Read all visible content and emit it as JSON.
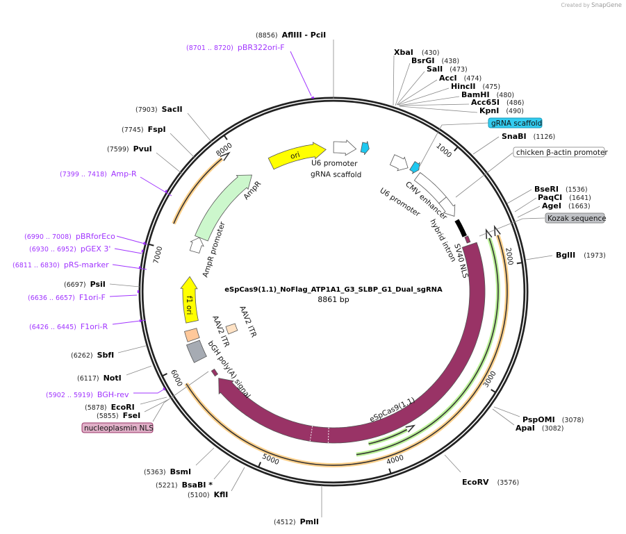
{
  "credit": {
    "prefix": "Created by",
    "brand": "SnapGene"
  },
  "plasmid": {
    "name": "eSpCas9(1.1)_NoFlag_ATP1A1_G3_SLBP_G1_Dual_sgRNA",
    "length_label": "8861 bp",
    "length": 8861
  },
  "ticks": [
    "1000",
    "2000",
    "3000",
    "4000",
    "5000",
    "6000",
    "7000",
    "8000"
  ],
  "features": [
    {
      "label": "ori",
      "start": 8221,
      "end": 8787,
      "color": "#ffff00",
      "direction": "forward"
    },
    {
      "label": "U6 promoter",
      "start": 1,
      "end": 222,
      "color": "#ffffff",
      "direction": "forward"
    },
    {
      "label": "gRNA scaffold",
      "start": 271,
      "end": 345,
      "color": "#1ec8f0",
      "direction": "forward"
    },
    {
      "label": "U6 promoter",
      "start": 591,
      "end": 763,
      "color": "#ffffff",
      "direction": "forward"
    },
    {
      "label": "gRNA scaffold",
      "start": 788,
      "end": 862,
      "color": "#1ec8f0",
      "direction": "forward"
    },
    {
      "label": "CMV enhancer",
      "start": 886,
      "end": 1231,
      "color": "#ffffff",
      "direction": "none"
    },
    {
      "label": "chicken β-actin promoter",
      "start": 1231,
      "end": 1428,
      "color": "#ffffff",
      "direction": "forward"
    },
    {
      "label": "hybrid intron",
      "start": 1477,
      "end": 1649,
      "color": "#000000",
      "direction": "none"
    },
    {
      "label": "SV40 NLS",
      "start": 1661,
      "end": 1723,
      "color": "#993366",
      "direction": "none"
    },
    {
      "label": "eSpCas9(1.1)",
      "start": 1748,
      "end": 5735,
      "color": "#993366",
      "direction": "forward"
    },
    {
      "label": "nucleoplasmin NLS",
      "start": 5772,
      "end": 5833,
      "color": "#993366",
      "direction": "none"
    },
    {
      "label": "bGH poly(A) signal",
      "start": 5981,
      "end": 6154,
      "color": "#a6abb3",
      "direction": "none"
    },
    {
      "label": "AAV2 ITR",
      "start": 6178,
      "end": 6277,
      "color": "#ffc89a",
      "direction": "none"
    },
    {
      "label": "AAV2 ITR",
      "start": 6104,
      "end": 6203,
      "color": "#ffe2c4",
      "direction": "none"
    },
    {
      "label": "f1 ori",
      "start": 6350,
      "end": 6793,
      "color": "#ffff00",
      "direction": "forward"
    },
    {
      "label": "AmpR promoter",
      "start": 7040,
      "end": 7187,
      "color": "#ffffff",
      "direction": "forward"
    },
    {
      "label": "AmpR",
      "start": 7187,
      "end": 8000,
      "color": "#ccf7cc",
      "direction": "forward"
    }
  ],
  "arcs": [
    {
      "start": 7213,
      "end": 7951,
      "color": "#ffcc80",
      "direction": "forward"
    },
    {
      "start": 1674,
      "end": 5858,
      "color": "#ffcc80",
      "direction": "reverse"
    },
    {
      "start": 1674,
      "end": 4234,
      "color": "#b3f08c",
      "direction": "reverse"
    },
    {
      "start": 3667,
      "end": 4111,
      "color": "#b3f08c",
      "direction": "reverse"
    }
  ],
  "enzymes": [
    {
      "name": "AflIII  - PciI",
      "pos": "(8856)"
    },
    {
      "name": "SacII",
      "pos": "(7903)"
    },
    {
      "name": "FspI",
      "pos": "(7745)"
    },
    {
      "name": "PvuI",
      "pos": "(7599)"
    },
    {
      "name": "PsiI",
      "pos": "(6697)"
    },
    {
      "name": "SbfI",
      "pos": "(6262)"
    },
    {
      "name": "NotI",
      "pos": "(6117)"
    },
    {
      "name": "EcoRI",
      "pos": "(5878)"
    },
    {
      "name": "FseI",
      "pos": "(5855)"
    },
    {
      "name": "BsmI",
      "pos": "(5363)"
    },
    {
      "name": "BsaBI *",
      "pos": "(5221)"
    },
    {
      "name": "KflI",
      "pos": "(5100)"
    },
    {
      "name": "PmlI",
      "pos": "(4512)"
    },
    {
      "name": "XbaI",
      "pos": "(430)"
    },
    {
      "name": "BsrGI",
      "pos": "(438)"
    },
    {
      "name": "SalI",
      "pos": "(473)"
    },
    {
      "name": "AccI",
      "pos": "(474)"
    },
    {
      "name": "HincII",
      "pos": "(475)"
    },
    {
      "name": "BamHI",
      "pos": "(480)"
    },
    {
      "name": "Acc65I",
      "pos": "(486)"
    },
    {
      "name": "KpnI",
      "pos": "(490)"
    },
    {
      "name": "SnaBI",
      "pos": "(1126)"
    },
    {
      "name": "BseRI",
      "pos": "(1536)"
    },
    {
      "name": "PaqCI",
      "pos": "(1641)"
    },
    {
      "name": "AgeI",
      "pos": "(1663)"
    },
    {
      "name": "BglII",
      "pos": "(1973)"
    },
    {
      "name": "PspOMI",
      "pos": "(3078)"
    },
    {
      "name": "ApaI",
      "pos": "(3082)"
    },
    {
      "name": "EcoRV",
      "pos": "(3576)"
    }
  ],
  "primers": [
    {
      "name": "pBR322ori-F",
      "range": "(8701 .. 8720)"
    },
    {
      "name": "Amp-R",
      "range": "(7399 .. 7418)"
    },
    {
      "name": "pBRforEco",
      "range": "(6990 .. 7008)"
    },
    {
      "name": "pGEX 3'",
      "range": "(6930 .. 6952)"
    },
    {
      "name": "pRS-marker",
      "range": "(6811 .. 6830)"
    },
    {
      "name": "F1ori-F",
      "range": "(6636 .. 6657)"
    },
    {
      "name": "F1ori-R",
      "range": "(6426 .. 6445)"
    },
    {
      "name": "BGH-rev",
      "range": "(5902 .. 5919)"
    }
  ],
  "boxed_labels": [
    {
      "text": "gRNA scaffold",
      "color": "#33ccf0"
    },
    {
      "text": "chicken β-actin promoter",
      "color": "#ffffff"
    },
    {
      "text": "Kozak sequence",
      "color": "#c0c2c6"
    },
    {
      "text": "nucleoplasmin NLS",
      "color": "#e0b0c8"
    }
  ],
  "center_labels": {
    "u6_1": "U6 promoter",
    "scaffold_1": "gRNA scaffold"
  }
}
